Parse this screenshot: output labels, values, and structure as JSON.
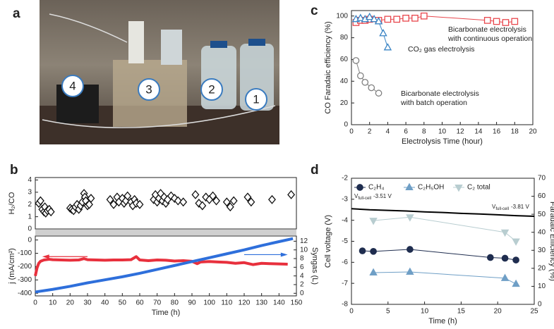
{
  "photo": {
    "panel_label": "a",
    "labels": [
      "4",
      "3",
      "2",
      "1"
    ]
  },
  "chart_data": [
    {
      "type": "line",
      "panel_label": "c",
      "xlabel": "Electrolysis Time (hour)",
      "ylabel": "CO Faradaic efficiency (%)",
      "xlim": [
        0,
        20
      ],
      "xticks": [
        0,
        2,
        4,
        6,
        8,
        10,
        12,
        14,
        16,
        18,
        20
      ],
      "ylim": [
        0,
        105
      ],
      "yticks": [
        0,
        20,
        40,
        60,
        80,
        100
      ],
      "hollow_markers": true,
      "series": [
        {
          "color": "#e8464c",
          "marker": "square",
          "x": [
            0.5,
            1,
            1.5,
            2,
            3,
            4,
            5,
            6,
            7,
            8,
            15,
            16,
            17,
            18
          ],
          "values": [
            94,
            96,
            96,
            97,
            96,
            97,
            97,
            98,
            98,
            100,
            96,
            95,
            94,
            95
          ]
        },
        {
          "color": "#3a84c4",
          "marker": "triangle",
          "x": [
            0.5,
            1,
            1.5,
            2,
            2.5,
            3,
            3.5,
            4
          ],
          "values": [
            97,
            98,
            97,
            99,
            97,
            95,
            84,
            71
          ]
        },
        {
          "color": "#808080",
          "marker": "circle",
          "x": [
            0.5,
            1,
            1.5,
            2.2,
            3
          ],
          "values": [
            59,
            45,
            39,
            34,
            29
          ]
        }
      ],
      "annotations": [
        {
          "lines": [
            "Bicarbonate electrolysis",
            "with continuous operation"
          ],
          "color": "#e8464c"
        },
        {
          "lines": [
            "CO₂ gas electrolysis"
          ],
          "color": "#3a84c4"
        },
        {
          "lines": [
            "Bicarbonate electrolysis",
            "with batch operation"
          ],
          "color": "#555555"
        }
      ]
    },
    {
      "type": "scatter",
      "panel_label": "b",
      "ylabel": "H₂/CO",
      "xlim": [
        0,
        150
      ],
      "ylim": [
        0,
        4.2
      ],
      "yticks": [
        0,
        1,
        2,
        3,
        4
      ],
      "hollow_markers": true,
      "series": [
        {
          "color": "#111111",
          "marker": "diamond",
          "x": [
            2,
            3,
            4,
            5,
            5.5,
            6,
            7,
            8,
            9,
            20,
            21,
            22,
            23,
            24,
            25,
            26,
            27,
            28,
            28.5,
            29,
            30,
            31,
            32,
            43,
            45,
            47,
            48,
            50,
            51,
            52,
            53,
            55,
            56,
            57,
            58,
            60,
            68,
            69,
            70,
            71,
            72,
            73,
            74,
            75,
            76,
            78,
            80,
            82,
            85,
            92,
            94,
            96,
            98,
            100,
            102,
            104,
            110,
            112,
            114,
            122,
            124,
            136,
            147
          ],
          "values": [
            2.1,
            2.3,
            1.6,
            1.4,
            1.8,
            1.3,
            1.5,
            1.6,
            1.4,
            1.7,
            1.6,
            1.5,
            1.8,
            2.0,
            1.6,
            1.9,
            2.2,
            2.9,
            2.6,
            2.3,
            1.9,
            2.0,
            2.5,
            2.4,
            2.0,
            2.6,
            2.2,
            2.5,
            2.1,
            2.3,
            2.7,
            2.2,
            1.9,
            2.4,
            2.1,
            2.0,
            2.4,
            2.8,
            2.2,
            2.5,
            2.9,
            2.3,
            2.6,
            2.1,
            2.4,
            2.7,
            2.5,
            2.3,
            2.2,
            2.8,
            2.1,
            1.9,
            2.6,
            2.4,
            2.7,
            2.3,
            2.2,
            1.8,
            2.3,
            2.6,
            2.2,
            2.4,
            2.8
          ]
        }
      ]
    },
    {
      "type": "line",
      "xlabel": "Time (h)",
      "ylabel": "j (mA/cm²)",
      "y2label": "Syngas (L)",
      "xlim": [
        0,
        150
      ],
      "xticks": [
        0,
        10,
        20,
        30,
        40,
        50,
        60,
        70,
        80,
        90,
        100,
        110,
        120,
        130,
        140,
        150
      ],
      "ylim": [
        -420,
        30
      ],
      "yticks": [
        -400,
        -300,
        -200,
        -100,
        0
      ],
      "y2lim": [
        -0.6,
        13.2
      ],
      "y2ticks": [
        0,
        2,
        4,
        6,
        8,
        10,
        12
      ],
      "series": [
        {
          "color": "#e8303d",
          "width": 4,
          "x": [
            0,
            1,
            2,
            3,
            5,
            8,
            10,
            15,
            20,
            25,
            28,
            30,
            35,
            40,
            45,
            50,
            55,
            58,
            60,
            65,
            70,
            75,
            80,
            85,
            90,
            93,
            95,
            100,
            105,
            110,
            115,
            120,
            125,
            130,
            135,
            140,
            145
          ],
          "values": [
            -270,
            -210,
            -175,
            -160,
            -150,
            -145,
            -148,
            -150,
            -152,
            -150,
            -140,
            -148,
            -150,
            -152,
            -150,
            -150,
            -148,
            -125,
            -150,
            -155,
            -150,
            -152,
            -158,
            -155,
            -160,
            -178,
            -165,
            -162,
            -165,
            -168,
            -175,
            -170,
            -185,
            -175,
            -178,
            -180,
            -182
          ]
        },
        {
          "color": "#2e6fdb",
          "width": 4,
          "axis": "y2",
          "x": [
            0,
            10,
            20,
            30,
            40,
            50,
            60,
            70,
            80,
            90,
            100,
            110,
            120,
            130,
            140,
            148
          ],
          "values": [
            0.3,
            0.9,
            1.6,
            2.4,
            3.1,
            3.8,
            4.6,
            5.5,
            6.4,
            7.3,
            8.2,
            9.1,
            10,
            11,
            11.9,
            12.6
          ]
        }
      ]
    },
    {
      "type": "line",
      "panel_label": "d",
      "xlabel": "Time (h)",
      "ylabel": "Cell voltage (V)",
      "y2label": "Faradaic Efficiency (%)",
      "xlim": [
        0,
        25
      ],
      "xticks": [
        0,
        5,
        10,
        15,
        20,
        25
      ],
      "ylim": [
        -8,
        -2
      ],
      "yticks": [
        -8,
        -7,
        -6,
        -5,
        -4,
        -3,
        -2
      ],
      "y2lim": [
        0,
        70
      ],
      "y2ticks": [
        0,
        10,
        20,
        30,
        40,
        50,
        60,
        70
      ],
      "legend": "top",
      "series": [
        {
          "color": "#000000",
          "width": 2,
          "x": [
            0,
            2.5,
            5,
            7.5,
            10,
            12.5,
            15,
            17.5,
            20,
            22.5,
            25
          ],
          "values": [
            -3.45,
            -3.5,
            -3.53,
            -3.56,
            -3.6,
            -3.63,
            -3.67,
            -3.7,
            -3.74,
            -3.78,
            -3.81
          ]
        },
        {
          "name": "C₂H₄",
          "color": "#1f2d4f",
          "width": 1,
          "marker": "circle",
          "axis": "y2",
          "x": [
            1.5,
            3,
            8,
            19,
            21,
            22.5
          ],
          "values": [
            29.7,
            29.4,
            30.5,
            26,
            25.6,
            24.6
          ]
        },
        {
          "name": "C₂H₅OH",
          "color": "#6f9fc6",
          "width": 1,
          "marker": "triangle",
          "axis": "y2",
          "x": [
            3,
            8,
            21,
            22.5
          ],
          "values": [
            17.6,
            18,
            14.5,
            11.3
          ]
        },
        {
          "name": "C₂ total",
          "color": "#b8cdd0",
          "width": 1,
          "marker": "triangle-down",
          "axis": "y2",
          "x": [
            3,
            8,
            21,
            22.5
          ],
          "values": [
            46.5,
            48.4,
            40,
            35
          ]
        }
      ],
      "annotations": [
        {
          "symbol": "V",
          "subscript": "full-cell",
          "text": "-3.51 V"
        },
        {
          "symbol": "V",
          "subscript": "full-cell",
          "text": "-3.81 V"
        }
      ]
    }
  ]
}
